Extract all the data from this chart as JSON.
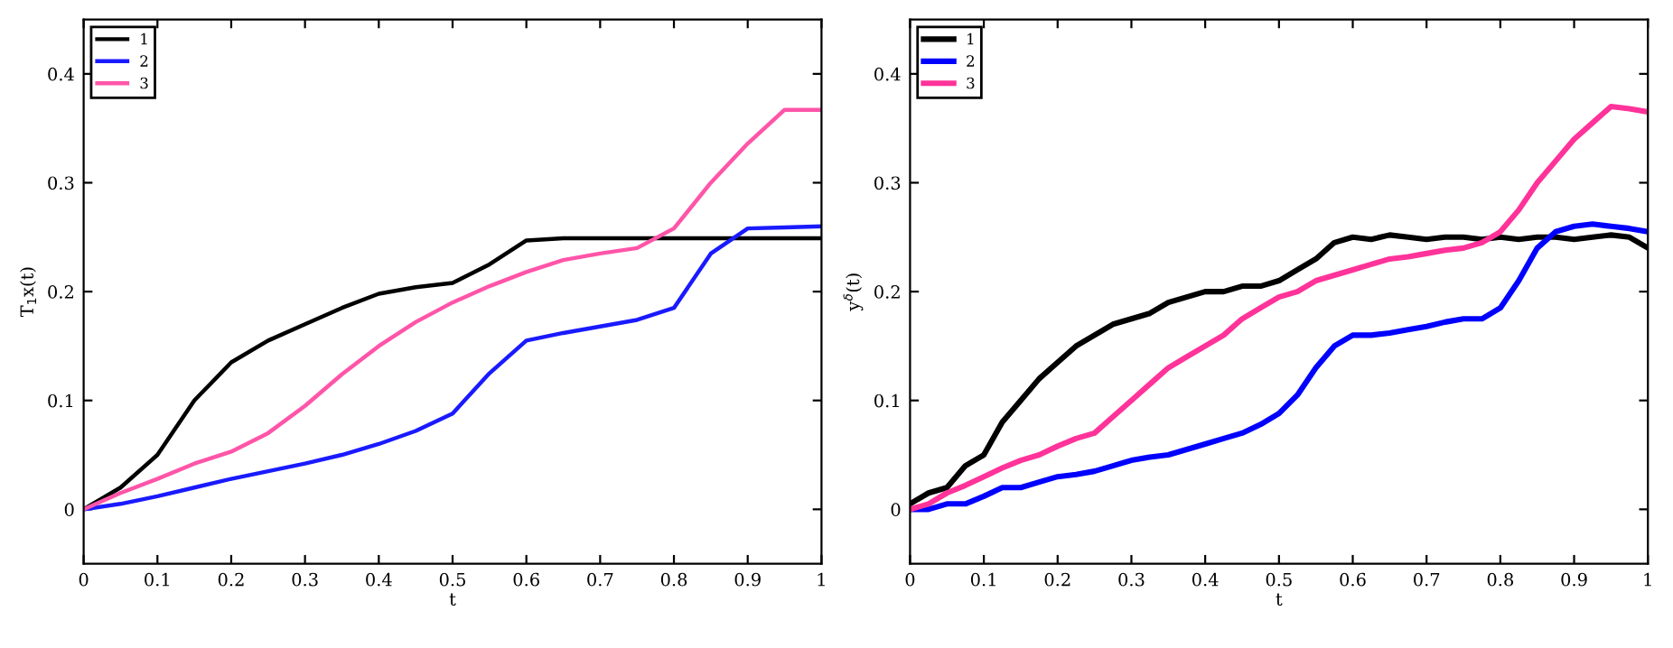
{
  "chart_data": [
    {
      "type": "line",
      "xlabel": "t",
      "ylabel": "T$_{1}$x(t)",
      "xlim": [
        0,
        1
      ],
      "ylim": [
        -0.05,
        0.45
      ],
      "xticks": [
        0,
        0.1,
        0.2,
        0.3,
        0.4,
        0.5,
        0.6,
        0.7,
        0.8,
        0.9,
        1
      ],
      "yticks": [
        0,
        0.1,
        0.2,
        0.3,
        0.4
      ],
      "grid": false,
      "legend": "top left",
      "line_style": "solid",
      "marker": "none",
      "x": [
        0,
        0.05,
        0.1,
        0.15,
        0.2,
        0.25,
        0.3,
        0.35,
        0.4,
        0.45,
        0.5,
        0.55,
        0.6,
        0.65,
        0.7,
        0.75,
        0.8,
        0.85,
        0.9,
        0.95,
        1
      ],
      "series": [
        {
          "name": "1",
          "color": "#000000",
          "values": [
            0,
            0.02,
            0.05,
            0.1,
            0.135,
            0.155,
            0.17,
            0.185,
            0.198,
            0.204,
            0.208,
            0.225,
            0.247,
            0.249,
            0.249,
            0.249,
            0.249,
            0.249,
            0.249,
            0.249,
            0.249
          ]
        },
        {
          "name": "2",
          "color": "#1a1aff",
          "values": [
            0,
            0.005,
            0.012,
            0.02,
            0.028,
            0.035,
            0.042,
            0.05,
            0.06,
            0.072,
            0.088,
            0.125,
            0.155,
            0.162,
            0.168,
            0.174,
            0.185,
            0.235,
            0.258,
            0.259,
            0.26
          ]
        },
        {
          "name": "3",
          "color": "#ff55a8",
          "values": [
            0,
            0.015,
            0.028,
            0.042,
            0.053,
            0.07,
            0.095,
            0.124,
            0.15,
            0.172,
            0.19,
            0.205,
            0.218,
            0.229,
            0.235,
            0.24,
            0.258,
            0.3,
            0.336,
            0.367,
            0.367
          ]
        }
      ]
    },
    {
      "type": "line",
      "xlabel": "t",
      "ylabel": "y$^{δ}$(t)",
      "xlim": [
        0,
        1
      ],
      "ylim": [
        -0.05,
        0.45
      ],
      "xticks": [
        0,
        0.1,
        0.2,
        0.3,
        0.4,
        0.5,
        0.6,
        0.7,
        0.8,
        0.9,
        1
      ],
      "yticks": [
        0,
        0.1,
        0.2,
        0.3,
        0.4
      ],
      "grid": false,
      "legend": "top left",
      "line_style": "solid",
      "marker": "none",
      "x": [
        0,
        0.025,
        0.05,
        0.075,
        0.1,
        0.125,
        0.15,
        0.175,
        0.2,
        0.225,
        0.25,
        0.275,
        0.3,
        0.325,
        0.35,
        0.375,
        0.4,
        0.425,
        0.45,
        0.475,
        0.5,
        0.525,
        0.55,
        0.575,
        0.6,
        0.625,
        0.65,
        0.675,
        0.7,
        0.725,
        0.75,
        0.775,
        0.8,
        0.825,
        0.85,
        0.875,
        0.9,
        0.925,
        0.95,
        0.975,
        1
      ],
      "series": [
        {
          "name": "1",
          "color": "#000000",
          "values": [
            0.005,
            0.015,
            0.02,
            0.04,
            0.05,
            0.08,
            0.1,
            0.12,
            0.135,
            0.15,
            0.16,
            0.17,
            0.175,
            0.18,
            0.19,
            0.195,
            0.2,
            0.2,
            0.205,
            0.205,
            0.21,
            0.22,
            0.23,
            0.245,
            0.25,
            0.248,
            0.252,
            0.25,
            0.248,
            0.25,
            0.25,
            0.248,
            0.25,
            0.248,
            0.25,
            0.25,
            0.248,
            0.25,
            0.252,
            0.25,
            0.24
          ]
        },
        {
          "name": "2",
          "color": "#0000ff",
          "values": [
            0,
            0,
            0.005,
            0.005,
            0.012,
            0.02,
            0.02,
            0.025,
            0.03,
            0.032,
            0.035,
            0.04,
            0.045,
            0.048,
            0.05,
            0.055,
            0.06,
            0.065,
            0.07,
            0.078,
            0.088,
            0.105,
            0.13,
            0.15,
            0.16,
            0.16,
            0.162,
            0.165,
            0.168,
            0.172,
            0.175,
            0.175,
            0.185,
            0.21,
            0.24,
            0.255,
            0.26,
            0.262,
            0.26,
            0.258,
            0.255
          ]
        },
        {
          "name": "3",
          "color": "#ff3399",
          "values": [
            0,
            0.005,
            0.015,
            0.022,
            0.03,
            0.038,
            0.045,
            0.05,
            0.058,
            0.065,
            0.07,
            0.085,
            0.1,
            0.115,
            0.13,
            0.14,
            0.15,
            0.16,
            0.175,
            0.185,
            0.195,
            0.2,
            0.21,
            0.215,
            0.22,
            0.225,
            0.23,
            0.232,
            0.235,
            0.238,
            0.24,
            0.245,
            0.255,
            0.275,
            0.3,
            0.32,
            0.34,
            0.355,
            0.37,
            0.368,
            0.365
          ]
        }
      ]
    }
  ]
}
